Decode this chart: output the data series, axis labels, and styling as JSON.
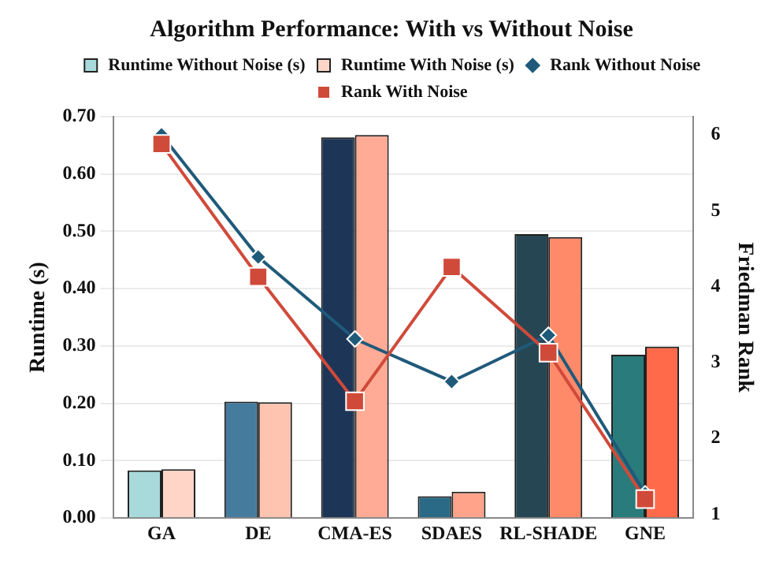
{
  "chart_data": {
    "type": "bar",
    "title": "Algorithm Performance: With vs Without Noise",
    "ylabel": "Runtime (s)",
    "y2label": "Friedman Rank",
    "categories": [
      "GA",
      "DE",
      "CMA-ES",
      "SDAES",
      "RL-SHADE",
      "GNE"
    ],
    "series": [
      {
        "name": "Runtime Without Noise (s)",
        "colors": [
          "#a8dadc",
          "#457b9d",
          "#1d3557",
          "#2b6a86",
          "#264653",
          "#2a7b7b"
        ],
        "values": [
          0.083,
          0.203,
          0.664,
          0.038,
          0.495,
          0.285
        ]
      },
      {
        "name": "Runtime With Noise (s)",
        "colors": [
          "#ffd5c8",
          "#ffc4b0",
          "#ffab96",
          "#ffa38a",
          "#ff8a6a",
          "#ff6b4a"
        ],
        "values": [
          0.085,
          0.202,
          0.668,
          0.046,
          0.49,
          0.299
        ]
      },
      {
        "name": "Rank Without Noise",
        "type": "line",
        "axis": "y2",
        "color": "#1f5a7a",
        "marker": "diamond",
        "values": [
          6.0,
          4.39,
          3.31,
          2.75,
          3.36,
          1.27
        ]
      },
      {
        "name": "Rank With Noise",
        "type": "line",
        "axis": "y2",
        "color": "#d04a3a",
        "marker": "square",
        "values": [
          5.88,
          4.13,
          2.49,
          4.26,
          3.13,
          1.2
        ]
      }
    ],
    "ylim": [
      0,
      0.7
    ],
    "yticks": [
      {
        "value": 0,
        "label": "0.00"
      },
      {
        "value": 0.1,
        "label": "0.10"
      },
      {
        "value": 0.2,
        "label": "0.20"
      },
      {
        "value": 0.3,
        "label": "0.30"
      },
      {
        "value": 0.4,
        "label": "0.40"
      },
      {
        "value": 0.5,
        "label": "0.50"
      },
      {
        "value": 0.6,
        "label": "0.60"
      },
      {
        "value": 0.7,
        "label": "0.70"
      }
    ],
    "y2lim": [
      0.95,
      6.24
    ],
    "y2ticks": [
      1,
      2,
      3,
      4,
      5,
      6
    ],
    "grid": "y",
    "legend": "top"
  }
}
